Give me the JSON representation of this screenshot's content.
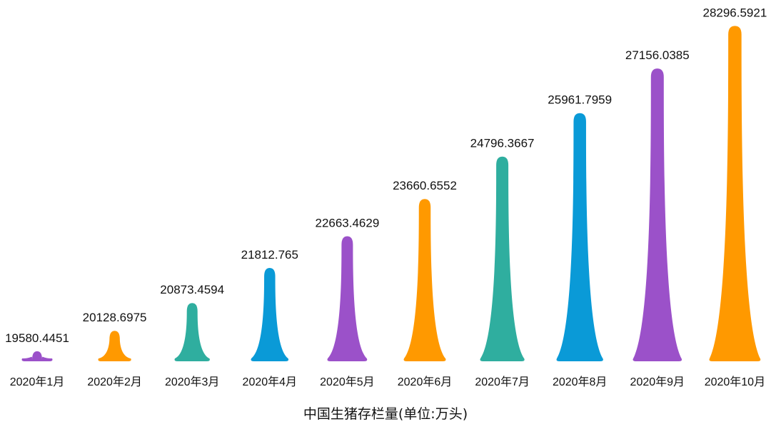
{
  "chart_data": {
    "type": "bar",
    "style": "pictorial-spike",
    "title": "",
    "xlabel": "中国生猪存栏量(单位:万头)",
    "ylabel": "",
    "grid": false,
    "legend": "none",
    "categories": [
      "2020年1月",
      "2020年2月",
      "2020年3月",
      "2020年4月",
      "2020年5月",
      "2020年6月",
      "2020年7月",
      "2020年8月",
      "2020年9月",
      "2020年10月"
    ],
    "values": [
      19580.4451,
      20128.6975,
      20873.4594,
      21812.765,
      22663.4629,
      23660.6552,
      24796.3667,
      25961.7959,
      27156.0385,
      28296.5921
    ],
    "value_labels": [
      "19580.4451",
      "20128.6975",
      "20873.4594",
      "21812.765",
      "22663.4629",
      "23660.6552",
      "24796.3667",
      "25961.7959",
      "27156.0385",
      "28296.5921"
    ],
    "ylim": [
      19350,
      28400
    ],
    "colors": [
      "#9b51c9",
      "#ff9900",
      "#2fae9f",
      "#0a9ad7",
      "#9b51c9",
      "#ff9900",
      "#2fae9f",
      "#0a9ad7",
      "#9b51c9",
      "#ff9900"
    ]
  }
}
